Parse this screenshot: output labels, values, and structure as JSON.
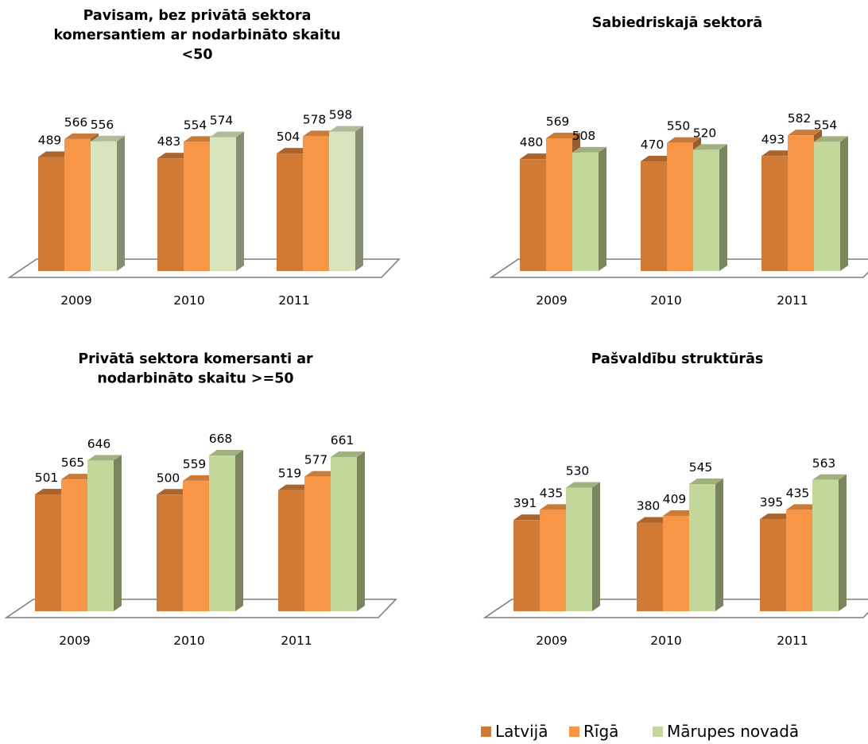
{
  "legend": {
    "items": [
      {
        "label": "Latvijā",
        "color": "#d07a36"
      },
      {
        "label": "Rīgā",
        "color": "#f79646"
      },
      {
        "label": "Mārupes novadā",
        "color": "#c4d79b"
      }
    ]
  },
  "chart_data": [
    {
      "type": "bar",
      "title_lines": [
        "Pavisam, bez privātā sektora",
        "komersantiem ar nodarbināto skaitu",
        "<50"
      ],
      "categories": [
        "2009",
        "2010",
        "2011"
      ],
      "series": [
        {
          "name": "Latvijā",
          "color": "#d07a36",
          "values": [
            489,
            483,
            504
          ]
        },
        {
          "name": "Rīgā",
          "color": "#f79646",
          "values": [
            566,
            554,
            578
          ]
        },
        {
          "name": "Mārupes novadā",
          "color": "#d8e4bc",
          "values": [
            556,
            574,
            598
          ]
        }
      ],
      "grid": false
    },
    {
      "type": "bar",
      "title_lines": [
        "Sabiedriskajā sektorā"
      ],
      "categories": [
        "2009",
        "2010",
        "2011"
      ],
      "series": [
        {
          "name": "Latvijā",
          "color": "#d07a36",
          "values": [
            480,
            470,
            493
          ]
        },
        {
          "name": "Rīgā",
          "color": "#f79646",
          "values": [
            569,
            550,
            582
          ]
        },
        {
          "name": "Mārupes novadā",
          "color": "#c4d79b",
          "values": [
            508,
            520,
            554
          ]
        }
      ],
      "grid": false
    },
    {
      "type": "bar",
      "title_lines": [
        "Privātā sektora komersanti ar",
        "nodarbināto skaitu >=50"
      ],
      "categories": [
        "2009",
        "2010",
        "2011"
      ],
      "series": [
        {
          "name": "Latvijā",
          "color": "#d07a36",
          "values": [
            501,
            500,
            519
          ]
        },
        {
          "name": "Rīgā",
          "color": "#f79646",
          "values": [
            565,
            559,
            577
          ]
        },
        {
          "name": "Mārupes novadā",
          "color": "#c4d79b",
          "values": [
            646,
            668,
            661
          ]
        }
      ],
      "grid": false
    },
    {
      "type": "bar",
      "title_lines": [
        "Pašvaldību struktūrās"
      ],
      "categories": [
        "2009",
        "2010",
        "2011"
      ],
      "series": [
        {
          "name": "Latvijā",
          "color": "#d07a36",
          "values": [
            391,
            380,
            395
          ]
        },
        {
          "name": "Rīgā",
          "color": "#f79646",
          "values": [
            435,
            409,
            435
          ]
        },
        {
          "name": "Mārupes novadā",
          "color": "#c4d79b",
          "values": [
            530,
            545,
            563
          ]
        }
      ],
      "grid": false
    }
  ]
}
